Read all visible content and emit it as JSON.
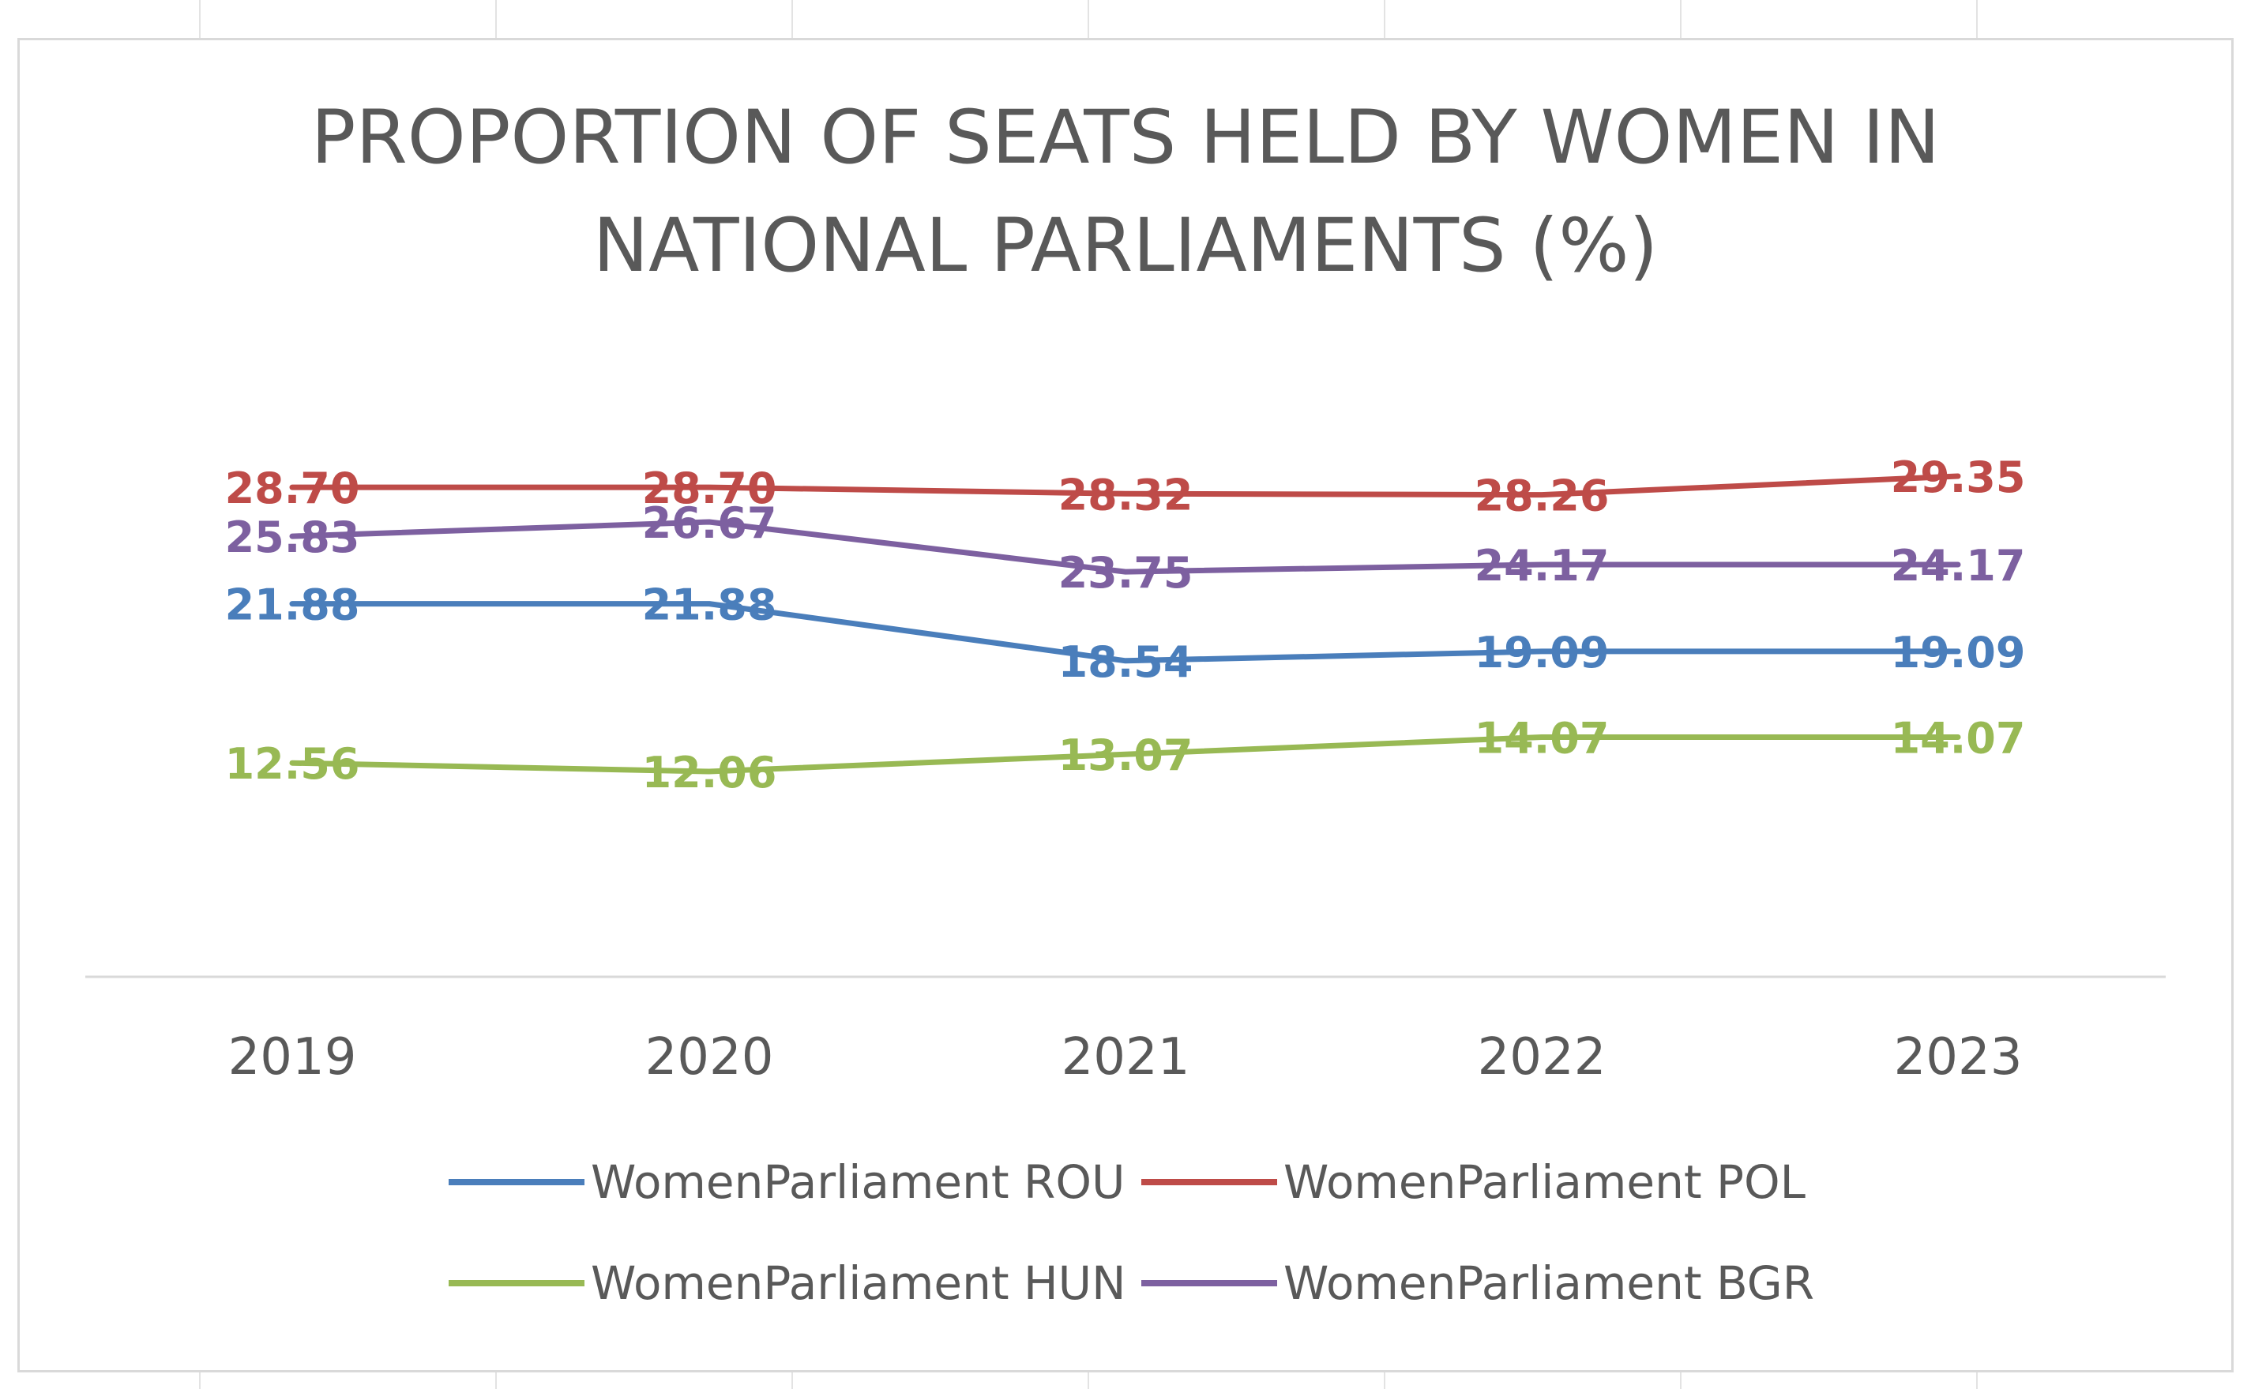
{
  "chart_data": {
    "type": "line",
    "title": "PROPORTION OF SEATS HELD BY WOMEN IN NATIONAL PARLIAMENTS (%)",
    "title_lines": [
      "PROPORTION OF SEATS HELD BY WOMEN IN",
      "NATIONAL PARLIAMENTS (%)"
    ],
    "xlabel": "",
    "ylabel": "",
    "grid": false,
    "legend_position": "bottom",
    "ylim": [
      0,
      35
    ],
    "categories": [
      "2019",
      "2020",
      "2021",
      "2022",
      "2023"
    ],
    "series": [
      {
        "name": "WomenParliament ROU",
        "color": "#4a7ebb",
        "values": [
          21.88,
          21.88,
          18.54,
          19.09,
          19.09
        ],
        "labels": [
          "21.88",
          "21.88",
          "18.54",
          "19.09",
          "19.09"
        ]
      },
      {
        "name": "WomenParliament POL",
        "color": "#be4b48",
        "values": [
          28.7,
          28.7,
          28.32,
          28.26,
          29.35
        ],
        "labels": [
          "28.70",
          "28.70",
          "28.32",
          "28.26",
          "29.35"
        ]
      },
      {
        "name": "WomenParliament HUN",
        "color": "#98b954",
        "values": [
          12.56,
          12.06,
          13.07,
          14.07,
          14.07
        ],
        "labels": [
          "12.56",
          "12.06",
          "13.07",
          "14.07",
          "14.07"
        ]
      },
      {
        "name": "WomenParliament BGR",
        "color": "#7d60a0",
        "values": [
          25.83,
          26.67,
          23.75,
          24.17,
          24.17
        ],
        "labels": [
          "25.83",
          "26.67",
          "23.75",
          "24.17",
          "24.17"
        ]
      }
    ]
  },
  "colors": {
    "title": "#595959",
    "axis_text": "#595959",
    "axis_line": "#d9d9d9",
    "sheet_grid": "#d9d9d9"
  }
}
